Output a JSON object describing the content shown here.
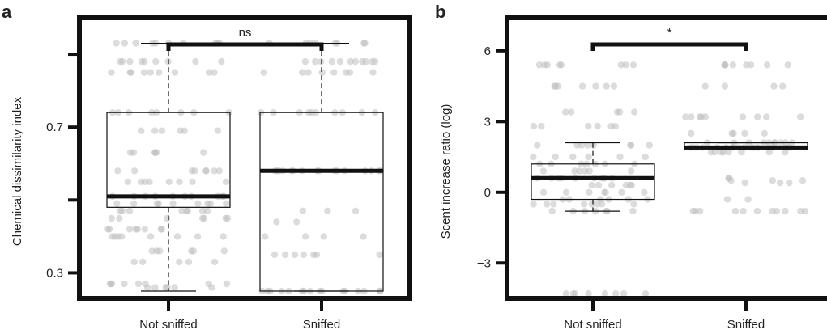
{
  "chart_data": [
    {
      "type": "box",
      "panel_label": "a",
      "ylabel": "Chemical dissimilarity index",
      "yticks": [
        0.3,
        0.7
      ],
      "ylim": [
        0.23,
        1.0
      ],
      "categories": [
        "Not sniffed",
        "Sniffed"
      ],
      "boxes": [
        {
          "category": "Not sniffed",
          "whisker_low": 0.25,
          "q1": 0.48,
          "median": 0.51,
          "q3": 0.74,
          "whisker_high": 0.93
        },
        {
          "category": "Sniffed",
          "whisker_low": 0.25,
          "q1": 0.25,
          "median": 0.58,
          "q3": 0.74,
          "whisker_high": 0.93
        }
      ],
      "jitter_groups": [
        {
          "category": "Not sniffed",
          "values": [
            0.93,
            0.93,
            0.93,
            0.93,
            0.93,
            0.93,
            0.93,
            0.93,
            0.93,
            0.93,
            0.88,
            0.88,
            0.88,
            0.88,
            0.88,
            0.88,
            0.88,
            0.88,
            0.88,
            0.85,
            0.85,
            0.85,
            0.85,
            0.85,
            0.85,
            0.85,
            0.85,
            0.85,
            0.74,
            0.74,
            0.74,
            0.74,
            0.74,
            0.74,
            0.74,
            0.74,
            0.69,
            0.69,
            0.69,
            0.69,
            0.69,
            0.69,
            0.63,
            0.63,
            0.63,
            0.63,
            0.63,
            0.63,
            0.58,
            0.58,
            0.58,
            0.58,
            0.58,
            0.58,
            0.58,
            0.58,
            0.55,
            0.55,
            0.55,
            0.55,
            0.55,
            0.55,
            0.55,
            0.55,
            0.51,
            0.51,
            0.51,
            0.51,
            0.51,
            0.51,
            0.51,
            0.51,
            0.51,
            0.51,
            0.49,
            0.49,
            0.49,
            0.49,
            0.49,
            0.49,
            0.49,
            0.49,
            0.49,
            0.47,
            0.47,
            0.47,
            0.47,
            0.47,
            0.47,
            0.47,
            0.47,
            0.45,
            0.45,
            0.45,
            0.45,
            0.45,
            0.45,
            0.45,
            0.42,
            0.42,
            0.42,
            0.42,
            0.42,
            0.42,
            0.42,
            0.42,
            0.4,
            0.4,
            0.4,
            0.4,
            0.4,
            0.4,
            0.4,
            0.4,
            0.36,
            0.36,
            0.36,
            0.36,
            0.36,
            0.36,
            0.33,
            0.33,
            0.33,
            0.33,
            0.33,
            0.27,
            0.27,
            0.27,
            0.27,
            0.27,
            0.27,
            0.27,
            0.27,
            0.26,
            0.26,
            0.26,
            0.26,
            0.26,
            0.26
          ]
        },
        {
          "category": "Sniffed",
          "values": [
            0.93,
            0.93,
            0.93,
            0.93,
            0.93,
            0.93,
            0.93,
            0.93,
            0.88,
            0.88,
            0.88,
            0.88,
            0.88,
            0.88,
            0.88,
            0.88,
            0.88,
            0.88,
            0.88,
            0.85,
            0.85,
            0.85,
            0.85,
            0.85,
            0.85,
            0.85,
            0.85,
            0.74,
            0.74,
            0.74,
            0.74,
            0.74,
            0.74,
            0.74,
            0.74,
            0.74,
            0.74,
            0.58,
            0.58,
            0.58,
            0.58,
            0.58,
            0.58,
            0.58,
            0.58,
            0.58,
            0.58,
            0.58,
            0.58,
            0.58,
            0.58,
            0.58,
            0.58,
            0.47,
            0.47,
            0.47,
            0.44,
            0.44,
            0.4,
            0.4,
            0.4,
            0.4,
            0.35,
            0.35,
            0.35,
            0.35,
            0.35,
            0.35,
            0.35,
            0.25,
            0.25,
            0.25,
            0.25,
            0.25,
            0.25,
            0.25,
            0.25,
            0.25,
            0.25,
            0.25,
            0.25,
            0.25,
            0.25,
            0.25,
            0.25
          ]
        }
      ],
      "significance": {
        "label": "ns",
        "between": [
          "Not sniffed",
          "Sniffed"
        ]
      }
    },
    {
      "type": "box",
      "panel_label": "b",
      "ylabel": "Scent increase ratio (log)",
      "yticks": [
        -3,
        0,
        3,
        6
      ],
      "ylim": [
        -4.5,
        7.4
      ],
      "categories": [
        "Not sniffed",
        "Sniffed"
      ],
      "boxes": [
        {
          "category": "Not sniffed",
          "whisker_low": -0.8,
          "q1": -0.3,
          "median": 0.6,
          "q3": 1.2,
          "whisker_high": 2.1
        },
        {
          "category": "Sniffed",
          "whisker_low": 1.8,
          "q1": 1.8,
          "median": 1.9,
          "q3": 2.1,
          "whisker_high": 2.1
        }
      ],
      "jitter_groups": [
        {
          "category": "Not sniffed",
          "values": [
            5.4,
            5.4,
            5.4,
            5.4,
            5.4,
            5.4,
            5.4,
            5.4,
            4.5,
            4.5,
            4.5,
            4.5,
            4.5,
            4.5,
            4.5,
            3.4,
            3.4,
            3.4,
            3.4,
            3.4,
            2.8,
            2.8,
            2.8,
            2.8,
            2.8,
            2.8,
            2.0,
            2.0,
            2.0,
            2.0,
            2.0,
            2.0,
            2.0,
            2.0,
            1.5,
            1.5,
            1.5,
            1.5,
            1.5,
            1.5,
            1.2,
            1.2,
            1.2,
            1.2,
            1.2,
            1.2,
            1.2,
            0.9,
            0.9,
            0.9,
            0.9,
            0.9,
            0.9,
            0.6,
            0.6,
            0.6,
            0.6,
            0.6,
            0.6,
            0.6,
            0.6,
            0.6,
            0.6,
            0.3,
            0.3,
            0.3,
            0.3,
            0.3,
            0.3,
            0.0,
            0.0,
            0.0,
            0.0,
            0.0,
            0.0,
            0.0,
            -0.3,
            -0.3,
            -0.3,
            -0.3,
            -0.3,
            -0.3,
            -0.5,
            -0.5,
            -0.5,
            -0.5,
            -0.5,
            -0.5,
            -0.5,
            -0.5,
            -0.8,
            -0.8,
            -0.8,
            -0.8,
            -0.8,
            -0.8,
            -0.8,
            -4.3,
            -4.3,
            -4.3,
            -4.3,
            -4.3,
            -4.3,
            -4.3,
            -4.3
          ]
        },
        {
          "category": "Sniffed",
          "values": [
            5.4,
            5.4,
            5.4,
            5.4,
            5.4,
            5.4,
            5.4,
            5.4,
            4.5,
            4.5,
            4.5,
            4.5,
            3.2,
            3.2,
            3.2,
            3.2,
            3.2,
            3.2,
            3.2,
            3.2,
            3.2,
            2.5,
            2.5,
            2.5,
            2.5,
            2.5,
            2.1,
            2.1,
            2.1,
            2.1,
            2.1,
            2.1,
            2.1,
            2.1,
            2.1,
            2.1,
            1.9,
            1.9,
            1.9,
            1.9,
            1.9,
            1.9,
            1.9,
            1.9,
            1.9,
            1.9,
            1.9,
            1.9,
            1.9,
            1.9,
            1.9,
            1.9,
            1.9,
            1.9,
            1.9,
            1.9,
            1.7,
            1.7,
            1.7,
            1.7,
            1.7,
            1.7,
            1.7,
            1.7,
            0.6,
            0.6,
            0.5,
            0.5,
            0.5,
            0.4,
            0.4,
            0.4,
            -0.3,
            -0.3,
            -0.8,
            -0.8,
            -0.8,
            -0.8,
            -0.8,
            -0.8,
            -0.8,
            -0.8,
            -0.8,
            -0.8,
            -0.8
          ]
        }
      ],
      "significance": {
        "label": "*",
        "between": [
          "Not sniffed",
          "Sniffed"
        ]
      }
    }
  ]
}
